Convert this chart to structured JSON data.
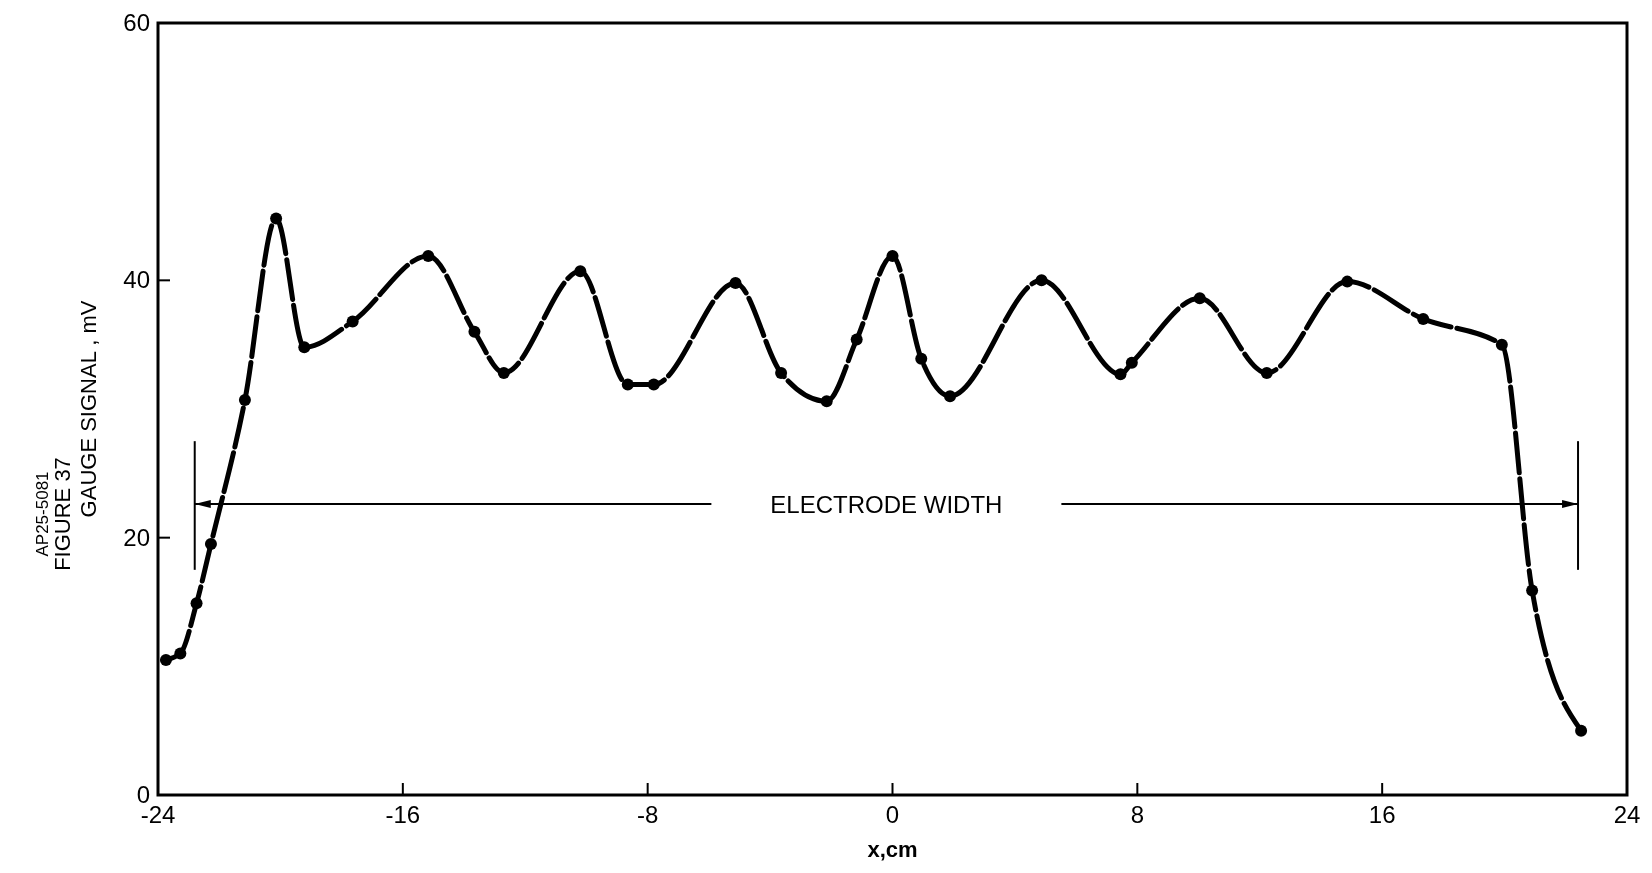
{
  "chart_data": {
    "type": "line",
    "xlabel": "x,cm",
    "ylabel": "GAUGE SIGNAL , mV",
    "xlim": [
      -24,
      24
    ],
    "xticks": [
      -24,
      -16,
      -8,
      0,
      8,
      16,
      24
    ],
    "ylim": [
      0,
      60
    ],
    "yticks": [
      0,
      20,
      40,
      60
    ],
    "grid": false,
    "marker": "circle",
    "line_style": "dashed",
    "series": [
      {
        "color": "#000000",
        "x": [
          -23.74,
          -23.27,
          -22.74,
          -22.27,
          -21.16,
          -20.14,
          -19.22,
          -17.64,
          -15.17,
          -13.66,
          -12.7,
          -10.2,
          -8.65,
          -7.8,
          -5.13,
          -3.64,
          -2.15,
          -1.17,
          0,
          0.94,
          1.88,
          4.87,
          7.45,
          7.82,
          10.04,
          12.23,
          14.86,
          17.34,
          19.91,
          20.9,
          22.5
        ],
        "values": [
          10.5,
          11,
          14.9,
          19.5,
          30.7,
          44.8,
          34.8,
          36.8,
          41.9,
          36,
          32.8,
          40.7,
          31.9,
          31.9,
          39.8,
          32.8,
          30.6,
          35.4,
          41.9,
          33.9,
          31,
          40,
          32.7,
          33.6,
          38.6,
          32.8,
          39.9,
          37,
          35,
          15.9,
          5
        ]
      }
    ],
    "ref_lines": [
      {
        "axis": "x",
        "value": -22.8,
        "color": "#000000"
      },
      {
        "axis": "x",
        "value": 22.4,
        "color": "#000000"
      }
    ],
    "annotations": [
      "ELECTRODE WIDTH",
      "FIGURE 37",
      "AP25-5081"
    ]
  }
}
